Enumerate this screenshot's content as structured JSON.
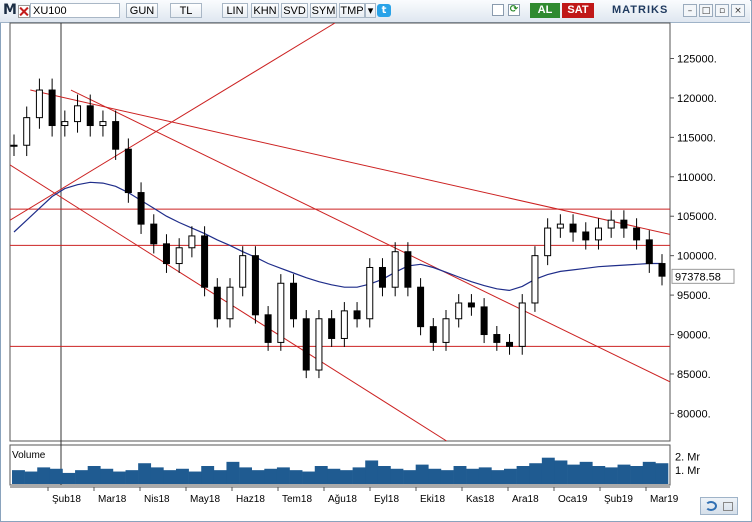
{
  "toolbar": {
    "symbol": "XU100",
    "buttons": [
      "GUN",
      "TL",
      "LIN",
      "KHN",
      "SVD",
      "SYM",
      "TMP"
    ],
    "buy": "AL",
    "sell": "SAT",
    "logo": "MATRIKS"
  },
  "colors": {
    "candle": "#000000",
    "moving_average": "#1f2d8a",
    "trendline": "#cc2222",
    "volume": "#1f5b91"
  },
  "chart_data": [
    {
      "type": "candlestick",
      "title": "XU100",
      "x": [
        "Şub18",
        "Mar18",
        "Nis18",
        "May18",
        "Haz18",
        "Tem18",
        "Ağu18",
        "Eyl18",
        "Eki18",
        "Kas18",
        "Ara18",
        "Oca19",
        "Şub19",
        "Mar19"
      ],
      "yticks": [
        80000,
        85000,
        90000,
        95000,
        100000,
        105000,
        110000,
        115000,
        120000,
        125000
      ],
      "ytick_labels": [
        "80000.",
        "85000.",
        "90000.",
        "95000.",
        "100000.",
        "105000.",
        "110000.",
        "115000.",
        "120000.",
        "125000."
      ],
      "ylim": [
        76500,
        129500
      ],
      "last_value": 97378.58,
      "last_value_label": "97378.58",
      "close_series": {
        "name": "",
        "values": [
          114000,
          117500,
          121000,
          116500,
          117000,
          119000,
          116500,
          117000,
          113500,
          108000,
          104000,
          101500,
          99000,
          101000,
          102500,
          96000,
          92000,
          96000,
          100000,
          92500,
          89000,
          96500,
          92000,
          85500,
          92000,
          89500,
          93000,
          92000,
          98500,
          96000,
          100500,
          96000,
          91000,
          89000,
          92000,
          94000,
          93500,
          90000,
          89000,
          88500,
          94000,
          100000,
          103500,
          104000,
          103000,
          102000,
          103500,
          104500,
          103500,
          102000,
          99000,
          97400
        ]
      },
      "moving_average": {
        "name": "",
        "values": [
          103000,
          104500,
          106000,
          107500,
          108500,
          109000,
          109300,
          109200,
          108800,
          108000,
          107000,
          106000,
          105000,
          104200,
          103500,
          102800,
          102000,
          101300,
          100500,
          99800,
          99000,
          98400,
          97800,
          97200,
          96700,
          96300,
          96000,
          96000,
          96400,
          97000,
          97900,
          98700,
          98900,
          98500,
          97900,
          97300,
          96700,
          96200,
          95800,
          95600,
          96100,
          97000,
          97600,
          98000,
          98200,
          98400,
          98600,
          98700,
          98800,
          98900,
          99000,
          99000
        ]
      },
      "horizontal_levels": [
        105900,
        101300,
        88500
      ],
      "trendlines": [
        {
          "from": [
            "2018-01-01",
            104500
          ],
          "to": [
            "2018-08-13",
            129500
          ]
        },
        {
          "from": [
            "2018-01-15",
            121000
          ],
          "to": [
            "2019-04-01",
            102700
          ]
        },
        {
          "from": [
            "2018-01-01",
            111500
          ],
          "to": [
            "2018-10-29",
            76500
          ]
        },
        {
          "from": [
            "2018-02-12",
            121000
          ],
          "to": [
            "2019-04-01",
            84000
          ]
        }
      ]
    },
    {
      "type": "bar",
      "title": "Volume",
      "ytick_labels": [
        "2. Mr",
        "1. Mr"
      ],
      "yticks": [
        2000000000,
        1000000000
      ],
      "values": [
        1.0,
        0.9,
        1.2,
        1.1,
        0.8,
        1.0,
        1.3,
        1.1,
        0.9,
        1.0,
        1.5,
        1.2,
        1.0,
        1.1,
        0.9,
        1.3,
        1.0,
        1.6,
        1.2,
        1.0,
        1.1,
        1.2,
        1.0,
        0.9,
        1.3,
        1.1,
        1.0,
        1.2,
        1.7,
        1.3,
        1.1,
        1.0,
        1.4,
        1.1,
        1.0,
        1.3,
        1.1,
        1.2,
        1.0,
        1.1,
        1.3,
        1.5,
        1.9,
        1.7,
        1.4,
        1.6,
        1.3,
        1.2,
        1.4,
        1.3,
        1.6,
        1.5
      ]
    }
  ]
}
